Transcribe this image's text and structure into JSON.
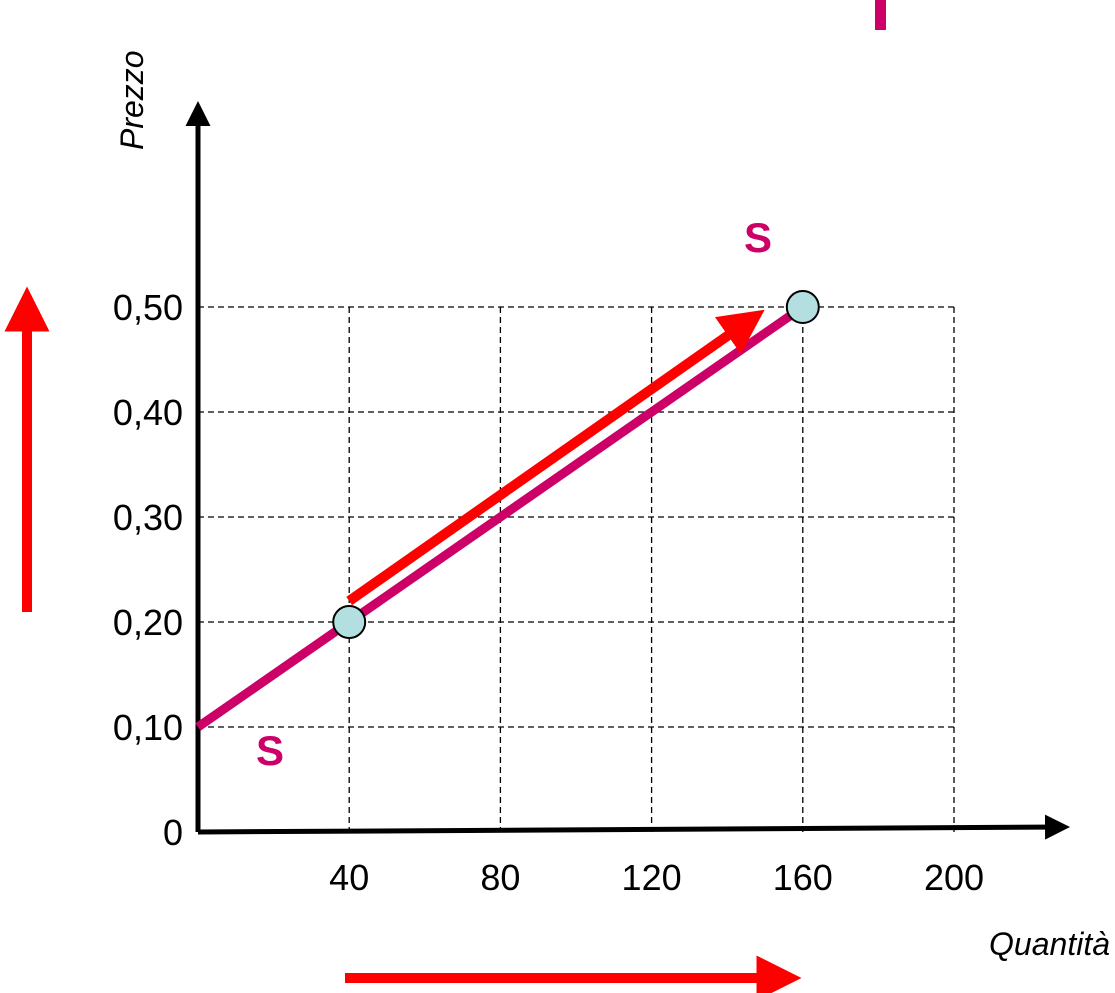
{
  "chart_data": {
    "type": "line",
    "title": "",
    "xlabel": "Quantità",
    "ylabel": "Prezzo",
    "x_ticks": [
      "40",
      "80",
      "120",
      "160",
      "200"
    ],
    "x_tick_values": [
      40,
      80,
      120,
      160,
      200
    ],
    "y_ticks": [
      "0",
      "0,10",
      "0,20",
      "0,30",
      "0,40",
      "0,50"
    ],
    "y_tick_values": [
      0,
      0.1,
      0.2,
      0.3,
      0.4,
      0.5
    ],
    "xlim": [
      0,
      230
    ],
    "ylim": [
      0,
      0.62
    ],
    "grid": "dashed",
    "series": [
      {
        "name": "S",
        "color": "#cc0066",
        "points": [
          {
            "x": 0,
            "y": 0.1
          },
          {
            "x": 40,
            "y": 0.2
          },
          {
            "x": 160,
            "y": 0.5
          }
        ]
      }
    ],
    "highlighted_points": [
      {
        "x": 40,
        "y": 0.2
      },
      {
        "x": 160,
        "y": 0.5
      }
    ],
    "marker_color": "#b4dfe0",
    "curve_labels": [
      {
        "text": "S",
        "anchor": "start"
      },
      {
        "text": "S",
        "anchor": "end"
      }
    ],
    "movement_arrows": [
      {
        "meaning": "movement along curve",
        "from": {
          "x": 40,
          "y": 0.22
        },
        "to": {
          "x": 147,
          "y": 0.49
        }
      }
    ],
    "direction_arrows": [
      "price up",
      "quantity right"
    ],
    "arrow_color": "#ff0000",
    "top_mark_color": "#cc0066"
  }
}
